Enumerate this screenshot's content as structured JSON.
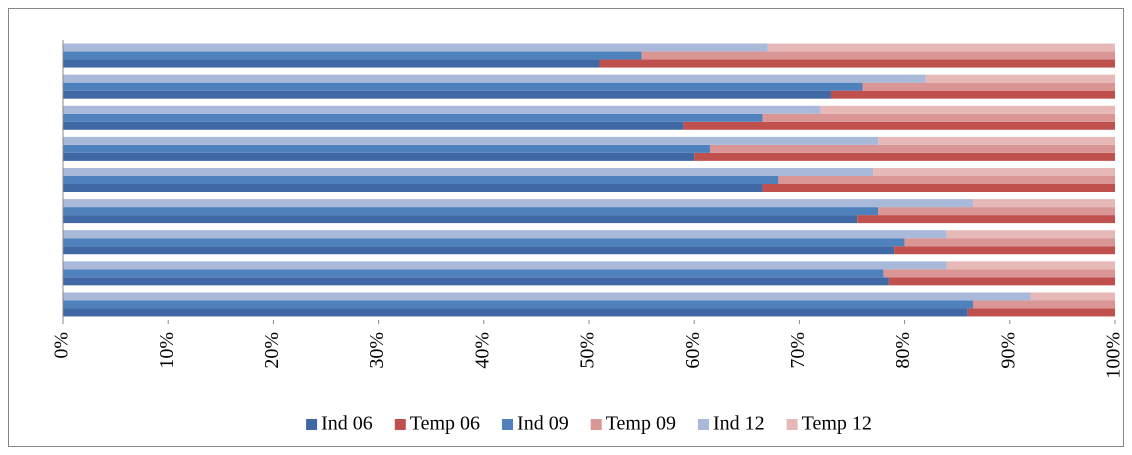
{
  "chart_data": {
    "type": "bar",
    "orientation": "horizontal",
    "stacked": "percent",
    "categories": [
      null,
      null,
      null,
      null,
      null,
      null,
      null,
      null,
      null
    ],
    "series": [
      {
        "name": "Ind 06",
        "color": "#3f68a4",
        "values": [
          51,
          73,
          59,
          60,
          66.5,
          75.5,
          79,
          78.5,
          86
        ]
      },
      {
        "name": "Temp 06",
        "color": "#c0504d",
        "values": [
          49,
          27,
          41,
          40,
          33.5,
          24.5,
          21,
          21.5,
          14
        ]
      },
      {
        "name": "Ind 09",
        "color": "#4f81bd",
        "values": [
          55,
          76,
          66.5,
          61.5,
          68,
          77.5,
          80,
          78,
          86.5
        ]
      },
      {
        "name": "Temp 09",
        "color": "#d99694",
        "values": [
          45,
          24,
          33.5,
          38.5,
          32,
          22.5,
          20,
          22,
          13.5
        ]
      },
      {
        "name": "Ind 12",
        "color": "#a9b9d9",
        "values": [
          67,
          82,
          72,
          77.5,
          77,
          86.5,
          84,
          84,
          92
        ]
      },
      {
        "name": "Temp 12",
        "color": "#e6b9b8",
        "values": [
          33,
          18,
          28,
          22.5,
          23,
          13.5,
          16,
          16,
          8
        ]
      }
    ],
    "xlim": [
      0,
      100
    ],
    "xticks": [
      {
        "value": 0,
        "label": "0%"
      },
      {
        "value": 10,
        "label": "10%"
      },
      {
        "value": 20,
        "label": "20%"
      },
      {
        "value": 30,
        "label": "30%"
      },
      {
        "value": 40,
        "label": "40%"
      },
      {
        "value": 50,
        "label": "50%"
      },
      {
        "value": 60,
        "label": "60%"
      },
      {
        "value": 70,
        "label": "70%"
      },
      {
        "value": 80,
        "label": "80%"
      },
      {
        "value": 90,
        "label": "90%"
      },
      {
        "value": 100,
        "label": "100%"
      }
    ],
    "grid": false,
    "legend": "bottom"
  }
}
